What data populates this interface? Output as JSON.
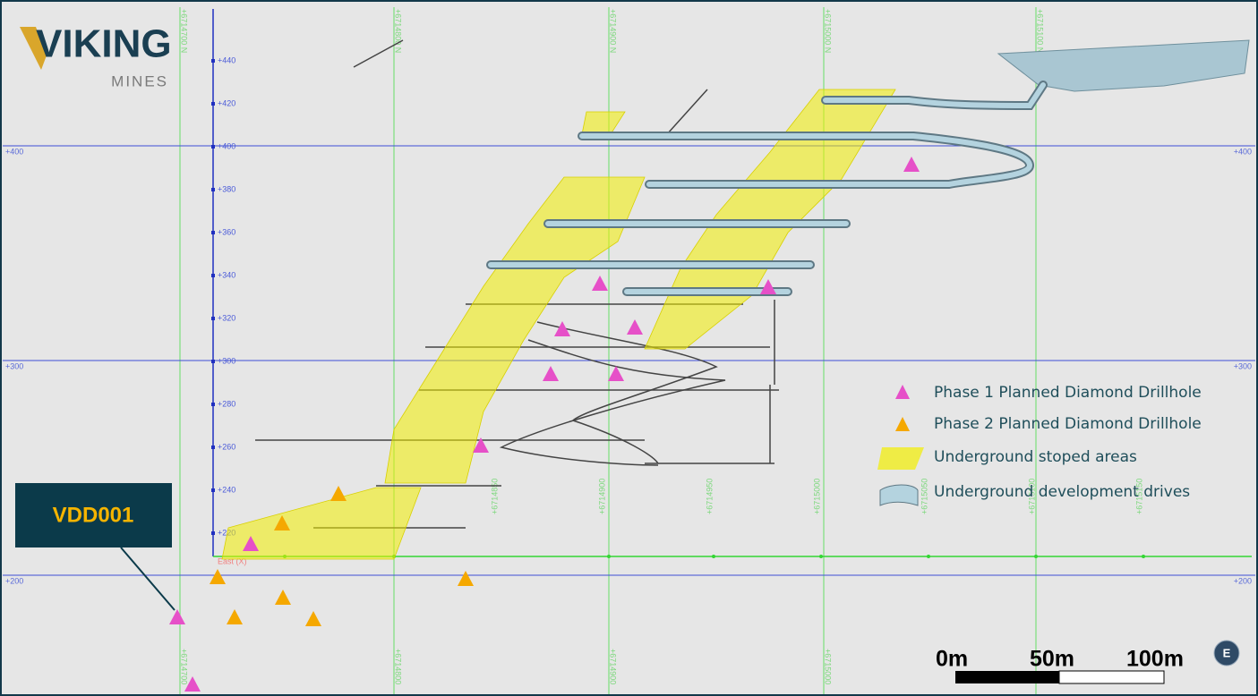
{
  "logo": {
    "name": "VIKING",
    "subtitle": "MINES"
  },
  "elevation_axis": {
    "labels": [
      "+440",
      "+420",
      "+400",
      "+380",
      "+360",
      "+340",
      "+320",
      "+300",
      "+280",
      "+260",
      "+240",
      "+220"
    ]
  },
  "grid": {
    "rl_labels": [
      "+400",
      "+300",
      "+200"
    ],
    "northing_top": [
      "+6714700 N",
      "+6714800 N",
      "+6714900 N",
      "+6715000 N",
      "+6715100 N"
    ],
    "northing_bottom": [
      "+6714700",
      "+6714800",
      "+6714900",
      "+6715000"
    ],
    "east_axis_title": "East (X)",
    "east_axis_labels": [
      "+6714850",
      "+6714900",
      "+6714950",
      "+6715000",
      "+6715050",
      "+6715100",
      "+6715150"
    ]
  },
  "legend": [
    {
      "label": "Phase 1 Planned Diamond Drillhole"
    },
    {
      "label": "Phase 2 Planned Diamond Drillhole"
    },
    {
      "label": "Underground stoped areas"
    },
    {
      "label": "Underground development drives"
    }
  ],
  "callout": "VDD001",
  "scale_bar": {
    "labels": [
      "0m",
      "50m",
      "100m"
    ]
  },
  "compass": "E"
}
